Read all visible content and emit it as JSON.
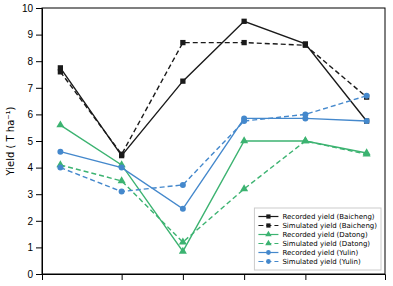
{
  "chart_data": {
    "type": "line",
    "ylabel": "Yield ( T ha⁻¹)",
    "x": [
      0,
      1,
      2,
      3,
      4,
      5
    ],
    "xlim": [
      -0.3,
      5.3
    ],
    "xticks": [
      1,
      2,
      3,
      4
    ],
    "ylim": [
      0,
      10
    ],
    "yticks": [
      0,
      1,
      2,
      3,
      4,
      5,
      6,
      7,
      8,
      9,
      10
    ],
    "tick_labels": "y",
    "grid": false,
    "legend": "lower right",
    "series": [
      {
        "name": "Recorded yield (Baicheng)",
        "color": "#1a1a1a",
        "marker": "square",
        "line_style": "solid",
        "values": [
          7.75,
          4.45,
          7.25,
          9.5,
          8.65,
          5.75
        ]
      },
      {
        "name": "Simulated yield (Baicheng)",
        "color": "#1a1a1a",
        "marker": "square",
        "line_style": "dashed",
        "values": [
          7.6,
          4.5,
          8.7,
          8.7,
          8.6,
          6.65
        ]
      },
      {
        "name": "Recorded yield (Datong)",
        "color": "#3cb371",
        "marker": "triangle",
        "line_style": "solid",
        "values": [
          5.6,
          4.1,
          0.85,
          5.0,
          5.0,
          4.55
        ]
      },
      {
        "name": "Simulated yield (Datong)",
        "color": "#3cb371",
        "marker": "triangle",
        "line_style": "dashed",
        "values": [
          4.1,
          3.5,
          1.2,
          3.2,
          5.0,
          4.5
        ]
      },
      {
        "name": "Recorded yield (Yulin)",
        "color": "#4488cc",
        "marker": "circle",
        "line_style": "solid",
        "values": [
          4.6,
          4.0,
          2.45,
          5.85,
          5.85,
          5.75
        ]
      },
      {
        "name": "Simulated yield (Yulin)",
        "color": "#4488cc",
        "marker": "circle",
        "line_style": "dashed",
        "values": [
          4.0,
          3.1,
          3.35,
          5.75,
          6.0,
          6.7
        ]
      }
    ]
  }
}
